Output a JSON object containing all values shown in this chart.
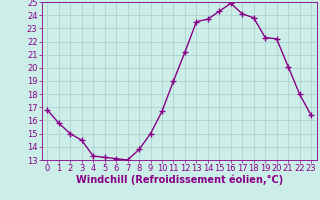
{
  "x": [
    0,
    1,
    2,
    3,
    4,
    5,
    6,
    7,
    8,
    9,
    10,
    11,
    12,
    13,
    14,
    15,
    16,
    17,
    18,
    19,
    20,
    21,
    22,
    23
  ],
  "y": [
    16.8,
    15.8,
    15.0,
    14.5,
    13.3,
    13.2,
    13.1,
    13.0,
    13.8,
    15.0,
    16.7,
    19.0,
    21.2,
    23.5,
    23.7,
    24.3,
    24.9,
    24.1,
    23.8,
    22.3,
    22.2,
    20.1,
    18.0,
    16.4
  ],
  "line_color": "#880088",
  "marker": "+",
  "marker_size": 4,
  "xlabel": "Windchill (Refroidissement éolien,°C)",
  "xlabel_fontsize": 7,
  "bg_color": "#cceee8",
  "grid_color": "#aacccc",
  "tick_color": "#880088",
  "label_color": "#880088",
  "ylim": [
    13,
    25
  ],
  "xlim": [
    -0.5,
    23.5
  ],
  "yticks": [
    13,
    14,
    15,
    16,
    17,
    18,
    19,
    20,
    21,
    22,
    23,
    24,
    25
  ],
  "xticks": [
    0,
    1,
    2,
    3,
    4,
    5,
    6,
    7,
    8,
    9,
    10,
    11,
    12,
    13,
    14,
    15,
    16,
    17,
    18,
    19,
    20,
    21,
    22,
    23
  ],
  "tick_fontsize": 6,
  "line_width": 1.0
}
